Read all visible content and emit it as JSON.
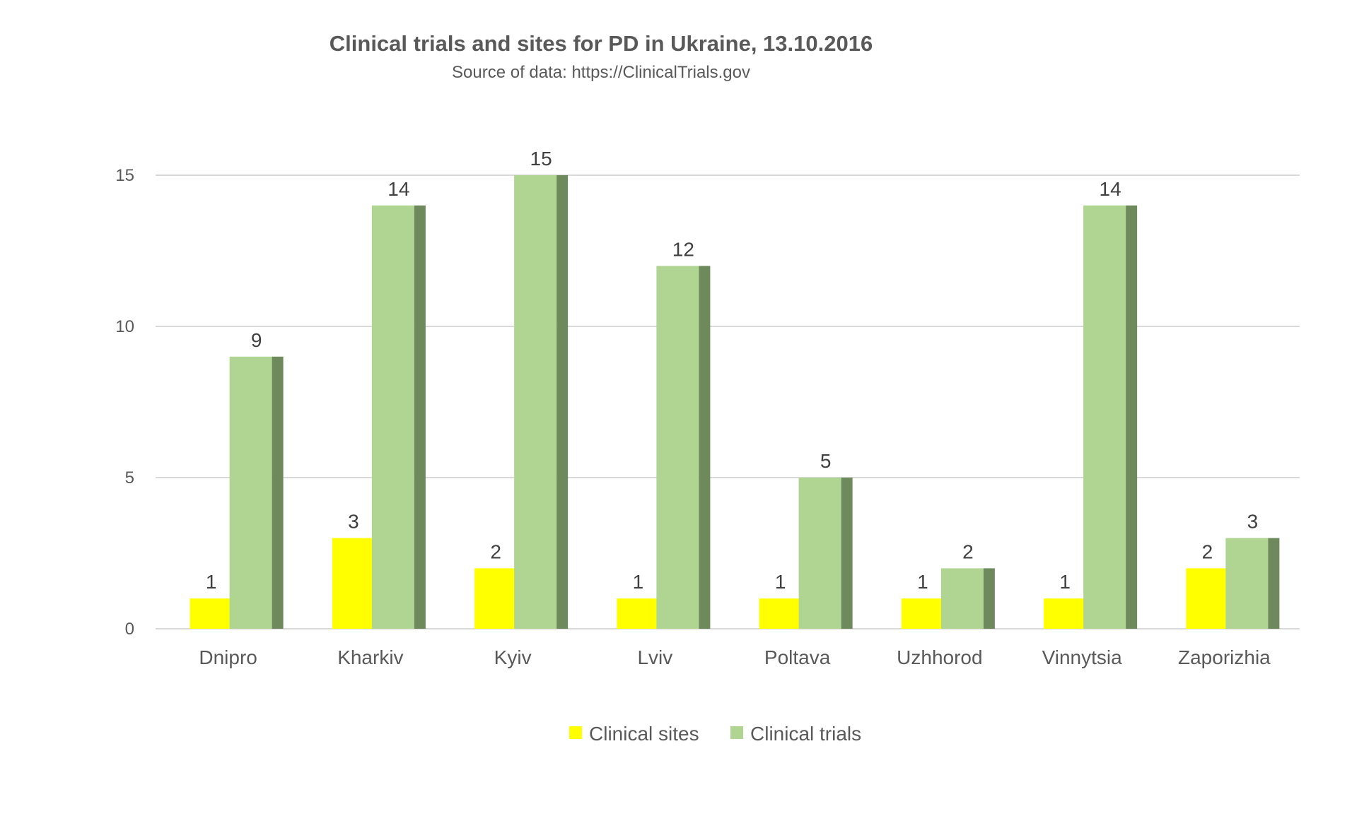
{
  "chart_data": {
    "type": "bar",
    "title": "Clinical trials and sites for PD in Ukraine, 13.10.2016",
    "subtitle": "Source of data:  https://ClinicalTrials.gov",
    "xlabel": "",
    "ylabel": "",
    "ylim": [
      0,
      15
    ],
    "yticks": [
      0,
      5,
      10,
      15
    ],
    "grid": true,
    "legend_position": "bottom",
    "categories": [
      "Dnipro",
      "Kharkiv",
      "Kyiv",
      "Lviv",
      "Poltava",
      "Uzhhorod",
      "Vinnytsia",
      "Zaporizhia"
    ],
    "series": [
      {
        "name": "Clinical sites",
        "values": [
          1,
          3,
          2,
          1,
          1,
          1,
          1,
          2
        ],
        "color": "#ffff00",
        "side_color": "#a6a600"
      },
      {
        "name": "Clinical trials",
        "values": [
          9,
          14,
          15,
          12,
          5,
          2,
          14,
          3
        ],
        "color": "#b0d592",
        "side_color": "#6e8a5c"
      }
    ]
  }
}
